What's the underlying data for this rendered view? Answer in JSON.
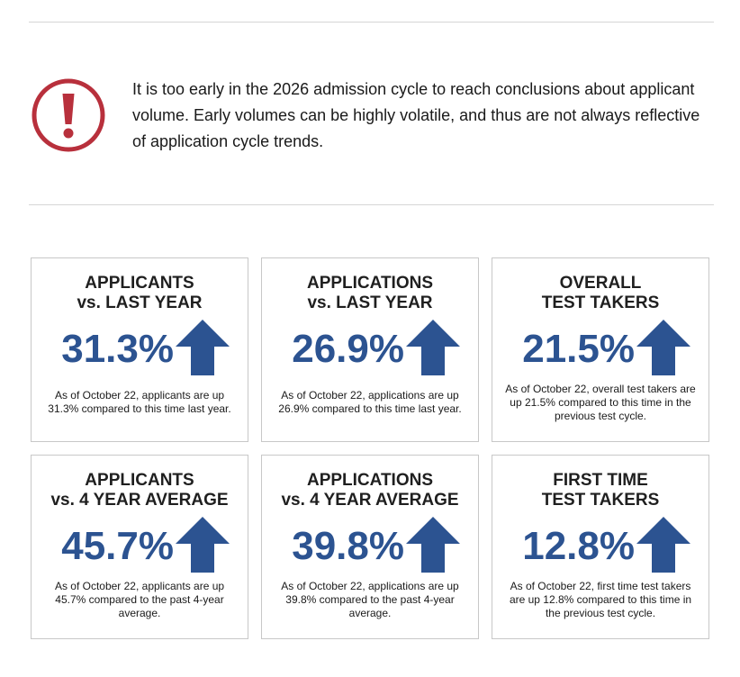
{
  "notice": {
    "icon": "exclamation-circle-icon",
    "icon_color": "#b8303c",
    "text": "It is too early in the 2026 admission cycle to reach conclusions about applicant volume. Early volumes can be highly volatile, and thus are not always reflective of application cycle trends."
  },
  "colors": {
    "stat": "#2c5391",
    "arrow": "#2c5391",
    "border": "#c8c8c8"
  },
  "cards": [
    {
      "title_line1": "APPLICANTS",
      "title_line2": "vs. LAST YEAR",
      "value": "31.3%",
      "trend": "up-arrow-icon",
      "description": "As of October 22, applicants are up 31.3% compared to this time last year."
    },
    {
      "title_line1": "APPLICATIONS",
      "title_line2": "vs. LAST YEAR",
      "value": "26.9%",
      "trend": "up-arrow-icon",
      "description": "As of October 22, applications are up 26.9% compared to this time last year."
    },
    {
      "title_line1": "OVERALL",
      "title_line2": "TEST TAKERS",
      "value": "21.5%",
      "trend": "up-arrow-icon",
      "description": "As of October 22, overall test takers are up 21.5% compared to this time in the previous test cycle."
    },
    {
      "title_line1": "APPLICANTS",
      "title_line2": "vs. 4 YEAR AVERAGE",
      "value": "45.7%",
      "trend": "up-arrow-icon",
      "description": "As of October 22, applicants are up 45.7% compared to the past 4-year average."
    },
    {
      "title_line1": "APPLICATIONS",
      "title_line2": "vs. 4 YEAR AVERAGE",
      "value": "39.8%",
      "trend": "up-arrow-icon",
      "description": "As of October 22, applications are up 39.8% compared to the past 4-year average."
    },
    {
      "title_line1": "FIRST TIME",
      "title_line2": "TEST TAKERS",
      "value": "12.8%",
      "trend": "up-arrow-icon",
      "description": "As of October 22, first time test takers are up 12.8% compared to this time in the previous test cycle."
    }
  ]
}
